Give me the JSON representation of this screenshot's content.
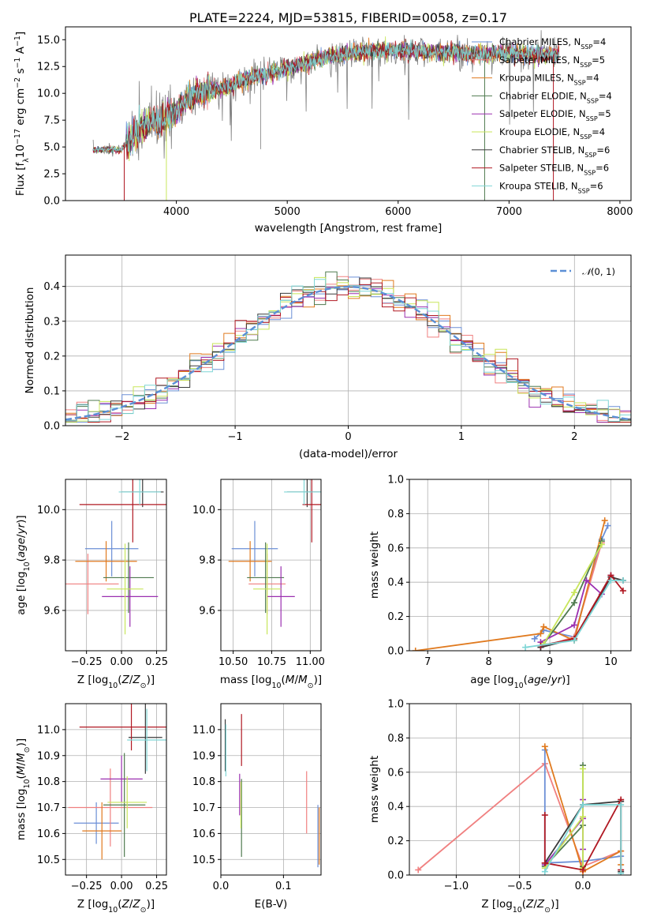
{
  "colors": {
    "Chabrier MILES": "#6b8fd6",
    "Salpeter MILES": "#f08080",
    "Kroupa MILES": "#e07a1f",
    "Chabrier ELODIE": "#4f7a4f",
    "Salpeter ELODIE": "#9b30b0",
    "Kroupa ELODIE": "#c8e65a",
    "Chabrier STELIB": "#3a3a3a",
    "Salpeter STELIB": "#b01822",
    "Kroupa STELIB": "#7fd6d6",
    "data": "#808080",
    "normal": "#5b8fd6"
  },
  "chart_data": [
    {
      "id": "spectrum",
      "type": "line",
      "title": "PLATE=2224, MJD=53815, FIBERID=0058, z=0.17",
      "xlabel": "wavelength [Angstrom, rest frame]",
      "ylabel": "Flux [f_λ10⁻¹⁷ erg cm⁻² s⁻¹ A⁻¹]",
      "xlim": [
        3000,
        8100
      ],
      "ylim": [
        0,
        16.2
      ],
      "xticks": [
        4000,
        5000,
        6000,
        7000,
        8000
      ],
      "yticks": [
        0.0,
        2.5,
        5.0,
        7.5,
        10.0,
        12.5,
        15.0
      ],
      "grid": false,
      "legend_position": "upper-right",
      "continuum": [
        [
          3250,
          4.7
        ],
        [
          3400,
          4.8
        ],
        [
          3500,
          4.7
        ],
        [
          3600,
          6.0
        ],
        [
          3750,
          7.2
        ],
        [
          3900,
          7.6
        ],
        [
          4000,
          8.4
        ],
        [
          4100,
          9.5
        ],
        [
          4300,
          10.3
        ],
        [
          4500,
          10.7
        ],
        [
          4700,
          11.6
        ],
        [
          4900,
          12.0
        ],
        [
          5100,
          12.6
        ],
        [
          5300,
          13.3
        ],
        [
          5500,
          13.6
        ],
        [
          5700,
          13.9
        ],
        [
          5900,
          14.0
        ],
        [
          6100,
          14.0
        ],
        [
          6300,
          13.8
        ],
        [
          6500,
          13.8
        ],
        [
          6700,
          13.6
        ],
        [
          6900,
          13.7
        ],
        [
          7100,
          13.7
        ],
        [
          7300,
          13.6
        ],
        [
          7450,
          13.6
        ]
      ],
      "legend": [
        "Chabrier MILES, N_SSP=4",
        "Salpeter MILES, N_SSP=5",
        "Kroupa MILES, N_SSP=4",
        "Chabrier ELODIE, N_SSP=4",
        "Salpeter ELODIE, N_SSP=5",
        "Kroupa ELODIE, N_SSP=4",
        "Chabrier STELIB, N_SSP=6",
        "Salpeter STELIB, N_SSP=6",
        "Kroupa STELIB, N_SSP=6"
      ]
    },
    {
      "id": "residuals",
      "type": "line",
      "xlabel": "(data-model)/error",
      "ylabel": "Normed distribution",
      "xlim": [
        -2.5,
        2.5
      ],
      "ylim": [
        0,
        0.49
      ],
      "xticks": [
        -2,
        -1,
        0,
        1,
        2
      ],
      "yticks": [
        0.0,
        0.1,
        0.2,
        0.3,
        0.4
      ],
      "grid": true,
      "legend_position": "upper-right",
      "legend": [
        "𝒩(0, 1)"
      ]
    },
    {
      "id": "age-vs-Z",
      "type": "scatter",
      "xlabel": "Z [log₁₀(Z/Z☉)]",
      "ylabel": "age  [log₁₀(age/yr)]",
      "xlim": [
        -0.4,
        0.32
      ],
      "ylim": [
        9.44,
        10.12
      ],
      "xticks": [
        -0.25,
        0.0,
        0.25
      ],
      "yticks": [
        9.6,
        9.8,
        10.0
      ],
      "grid": true,
      "points": [
        {
          "model": "Chabrier MILES",
          "x": -0.07,
          "xerr": 0.19,
          "y": 9.845,
          "yerr": 0.11
        },
        {
          "model": "Salpeter MILES",
          "x": -0.24,
          "xerr": 0.22,
          "y": 9.705,
          "yerr": 0.12
        },
        {
          "model": "Kroupa MILES",
          "x": -0.11,
          "xerr": 0.22,
          "y": 9.795,
          "yerr": 0.08
        },
        {
          "model": "Chabrier ELODIE",
          "x": 0.05,
          "xerr": 0.18,
          "y": 9.73,
          "yerr": 0.14
        },
        {
          "model": "Salpeter ELODIE",
          "x": 0.06,
          "xerr": 0.2,
          "y": 9.655,
          "yerr": 0.12
        },
        {
          "model": "Kroupa ELODIE",
          "x": 0.025,
          "xerr": 0.13,
          "y": 9.685,
          "yerr": 0.18
        },
        {
          "model": "Chabrier STELIB",
          "x": 0.15,
          "xerr": 0.15,
          "y": 10.07,
          "yerr": 0.06
        },
        {
          "model": "Salpeter STELIB",
          "x": 0.08,
          "xerr": 0.38,
          "y": 10.02,
          "yerr": 0.15
        },
        {
          "model": "Kroupa STELIB",
          "x": 0.13,
          "xerr": 0.15,
          "y": 10.07,
          "yerr": 0.05
        }
      ]
    },
    {
      "id": "age-vs-mass",
      "type": "scatter",
      "xlabel": "mass [log₁₀(M/M☉)]",
      "xlim": [
        10.42,
        11.07
      ],
      "ylim": [
        9.44,
        10.12
      ],
      "xticks": [
        10.5,
        10.75,
        11.0
      ],
      "yticks": [
        9.6,
        9.8,
        10.0
      ],
      "grid": true,
      "points": [
        {
          "model": "Chabrier MILES",
          "x": 10.64,
          "xerr": 0.15,
          "y": 9.845,
          "yerr": 0.11
        },
        {
          "model": "Salpeter MILES",
          "x": 10.72,
          "xerr": 0.12,
          "y": 9.705,
          "yerr": 0.12
        },
        {
          "model": "Kroupa MILES",
          "x": 10.61,
          "xerr": 0.14,
          "y": 9.795,
          "yerr": 0.08
        },
        {
          "model": "Chabrier ELODIE",
          "x": 10.71,
          "xerr": 0.12,
          "y": 9.73,
          "yerr": 0.14
        },
        {
          "model": "Salpeter ELODIE",
          "x": 10.81,
          "xerr": 0.09,
          "y": 9.655,
          "yerr": 0.12
        },
        {
          "model": "Kroupa ELODIE",
          "x": 10.72,
          "xerr": 0.09,
          "y": 9.685,
          "yerr": 0.18
        },
        {
          "model": "Chabrier STELIB",
          "x": 10.98,
          "xerr": 0.13,
          "y": 10.07,
          "yerr": 0.06
        },
        {
          "model": "Salpeter STELIB",
          "x": 11.01,
          "xerr": 0.06,
          "y": 10.02,
          "yerr": 0.15
        },
        {
          "model": "Kroupa STELIB",
          "x": 10.96,
          "xerr": 0.13,
          "y": 10.07,
          "yerr": 0.05
        }
      ]
    },
    {
      "id": "weight-vs-age",
      "type": "line",
      "xlabel": "age  [log₁₀(age/yr)]",
      "ylabel": "mass weight",
      "xlim": [
        6.7,
        10.33
      ],
      "ylim": [
        0,
        1.0
      ],
      "xticks": [
        7,
        8,
        9,
        10
      ],
      "yticks": [
        0.0,
        0.2,
        0.4,
        0.6,
        0.8,
        1.0
      ],
      "grid": true,
      "series": [
        {
          "model": "Chabrier MILES",
          "points": [
            [
              8.75,
              0.07
            ],
            [
              8.9,
              0.12
            ],
            [
              9.4,
              0.08
            ],
            [
              9.85,
              0.65
            ],
            [
              9.95,
              0.73
            ]
          ]
        },
        {
          "model": "Salpeter MILES",
          "points": [
            [
              8.85,
              0.02
            ],
            [
              9.4,
              0.08
            ],
            [
              9.85,
              0.63
            ]
          ]
        },
        {
          "model": "Kroupa MILES",
          "points": [
            [
              6.8,
              0.0
            ],
            [
              8.85,
              0.1
            ],
            [
              8.9,
              0.14
            ],
            [
              9.4,
              0.06
            ],
            [
              9.9,
              0.76
            ]
          ]
        },
        {
          "model": "Chabrier ELODIE",
          "points": [
            [
              8.9,
              0.04
            ],
            [
              9.4,
              0.28
            ],
            [
              9.85,
              0.64
            ]
          ]
        },
        {
          "model": "Salpeter ELODIE",
          "points": [
            [
              8.85,
              0.05
            ],
            [
              9.4,
              0.15
            ],
            [
              9.6,
              0.41
            ],
            [
              9.85,
              0.33
            ],
            [
              10.0,
              0.44
            ]
          ]
        },
        {
          "model": "Kroupa ELODIE",
          "points": [
            [
              8.9,
              0.04
            ],
            [
              9.4,
              0.34
            ],
            [
              9.85,
              0.62
            ]
          ]
        },
        {
          "model": "Chabrier STELIB",
          "points": [
            [
              8.85,
              0.02
            ],
            [
              9.4,
              0.07
            ],
            [
              10.0,
              0.43
            ],
            [
              10.2,
              0.41
            ]
          ]
        },
        {
          "model": "Salpeter STELIB",
          "points": [
            [
              8.85,
              0.03
            ],
            [
              9.4,
              0.07
            ],
            [
              10.0,
              0.44
            ],
            [
              10.2,
              0.35
            ]
          ]
        },
        {
          "model": "Kroupa STELIB",
          "points": [
            [
              8.6,
              0.02
            ],
            [
              9.4,
              0.06
            ],
            [
              10.0,
              0.41
            ],
            [
              10.2,
              0.41
            ]
          ]
        }
      ]
    },
    {
      "id": "mass-vs-Z",
      "type": "scatter",
      "xlabel": "Z [log₁₀(Z/Z☉)]",
      "ylabel": "mass [log₁₀(M/M☉)]",
      "xlim": [
        -0.4,
        0.32
      ],
      "ylim": [
        10.44,
        11.1
      ],
      "xticks": [
        -0.25,
        0.0,
        0.25
      ],
      "yticks": [
        10.5,
        10.6,
        10.7,
        10.8,
        10.9,
        11.0
      ],
      "grid": true,
      "points": [
        {
          "model": "Chabrier MILES",
          "x": -0.18,
          "xerr": 0.16,
          "y": 10.64,
          "yerr": 0.08
        },
        {
          "model": "Salpeter MILES",
          "x": -0.08,
          "xerr": 0.3,
          "y": 10.7,
          "yerr": 0.15
        },
        {
          "model": "Kroupa MILES",
          "x": -0.14,
          "xerr": 0.14,
          "y": 10.61,
          "yerr": 0.11
        },
        {
          "model": "Chabrier ELODIE",
          "x": 0.02,
          "xerr": 0.15,
          "y": 10.71,
          "yerr": 0.2
        },
        {
          "model": "Salpeter ELODIE",
          "x": 0.0,
          "xerr": 0.15,
          "y": 10.81,
          "yerr": 0.09
        },
        {
          "model": "Kroupa ELODIE",
          "x": 0.04,
          "xerr": 0.14,
          "y": 10.72,
          "yerr": 0.1
        },
        {
          "model": "Chabrier STELIB",
          "x": 0.17,
          "xerr": 0.12,
          "y": 10.97,
          "yerr": 0.14
        },
        {
          "model": "Salpeter STELIB",
          "x": 0.07,
          "xerr": 0.37,
          "y": 11.01,
          "yerr": 0.09
        },
        {
          "model": "Kroupa STELIB",
          "x": 0.18,
          "xerr": 0.14,
          "y": 10.96,
          "yerr": 0.12
        }
      ]
    },
    {
      "id": "mass-vs-EBV",
      "type": "scatter",
      "xlabel": "E(B-V)",
      "xlim": [
        0,
        0.16
      ],
      "ylim": [
        10.44,
        11.1
      ],
      "xticks": [
        0.0,
        0.1
      ],
      "yticks": [
        10.5,
        10.6,
        10.7,
        10.8,
        10.9,
        11.0
      ],
      "grid": true,
      "points": [
        {
          "model": "Chabrier MILES",
          "x": 0.155,
          "y": 10.59,
          "yerr": 0.12
        },
        {
          "model": "Salpeter MILES",
          "x": 0.137,
          "y": 10.72,
          "yerr": 0.12
        },
        {
          "model": "Kroupa MILES",
          "x": 0.157,
          "y": 10.59,
          "yerr": 0.11
        },
        {
          "model": "Chabrier ELODIE",
          "x": 0.033,
          "y": 10.66,
          "yerr": 0.15
        },
        {
          "model": "Salpeter ELODIE",
          "x": 0.03,
          "y": 10.75,
          "yerr": 0.08
        },
        {
          "model": "Kroupa ELODIE",
          "x": 0.032,
          "y": 10.71,
          "yerr": 0.09
        },
        {
          "model": "Chabrier STELIB",
          "x": 0.007,
          "y": 10.94,
          "yerr": 0.1
        },
        {
          "model": "Salpeter STELIB",
          "x": 0.033,
          "y": 10.96,
          "yerr": 0.1
        },
        {
          "model": "Kroupa STELIB",
          "x": 0.008,
          "y": 10.92,
          "yerr": 0.1
        }
      ]
    },
    {
      "id": "weight-vs-Z",
      "type": "line",
      "xlabel": "Z [log₁₀(Z/Z☉)]",
      "ylabel": "mass weight",
      "xlim": [
        -1.37,
        0.38
      ],
      "ylim": [
        0,
        1.0
      ],
      "xticks": [
        -1.0,
        -0.5,
        0.0
      ],
      "yticks": [
        0.0,
        0.2,
        0.4,
        0.6,
        0.8,
        1.0
      ],
      "grid": true,
      "series": [
        {
          "model": "Salpeter MILES",
          "points": [
            [
              -1.3,
              0.03
            ],
            [
              -0.3,
              0.65
            ],
            [
              0.0,
              0.05
            ],
            [
              0.3,
              0.14
            ]
          ]
        },
        {
          "model": "Chabrier MILES",
          "points": [
            [
              -0.3,
              0.73
            ],
            [
              -0.3,
              0.07
            ],
            [
              0.0,
              0.08
            ],
            [
              0.3,
              0.11
            ]
          ]
        },
        {
          "model": "Kroupa MILES",
          "points": [
            [
              -0.3,
              0.75
            ],
            [
              0.0,
              0.02
            ],
            [
              0.3,
              0.14
            ],
            [
              0.3,
              0.06
            ]
          ]
        },
        {
          "model": "Chabrier ELODIE",
          "points": [
            [
              -0.3,
              0.05
            ],
            [
              0.0,
              0.29
            ],
            [
              0.0,
              0.64
            ],
            [
              0.0,
              0.05
            ]
          ]
        },
        {
          "model": "Salpeter ELODIE",
          "points": [
            [
              -0.3,
              0.06
            ],
            [
              0.0,
              0.33
            ],
            [
              0.0,
              0.44
            ],
            [
              0.0,
              0.15
            ]
          ]
        },
        {
          "model": "Kroupa ELODIE",
          "points": [
            [
              -0.3,
              0.04
            ],
            [
              0.0,
              0.34
            ],
            [
              0.0,
              0.62
            ],
            [
              0.0,
              0.04
            ]
          ]
        },
        {
          "model": "Chabrier STELIB",
          "points": [
            [
              -0.3,
              0.07
            ],
            [
              0.0,
              0.41
            ],
            [
              0.3,
              0.43
            ],
            [
              0.3,
              0.02
            ]
          ]
        },
        {
          "model": "Salpeter STELIB",
          "points": [
            [
              -0.3,
              0.35
            ],
            [
              -0.3,
              0.07
            ],
            [
              0.0,
              0.03
            ],
            [
              0.3,
              0.44
            ],
            [
              0.3,
              0.03
            ]
          ]
        },
        {
          "model": "Kroupa STELIB",
          "points": [
            [
              -0.3,
              0.02
            ],
            [
              0.0,
              0.41
            ],
            [
              0.3,
              0.41
            ],
            [
              0.3,
              0.01
            ]
          ]
        }
      ]
    }
  ]
}
